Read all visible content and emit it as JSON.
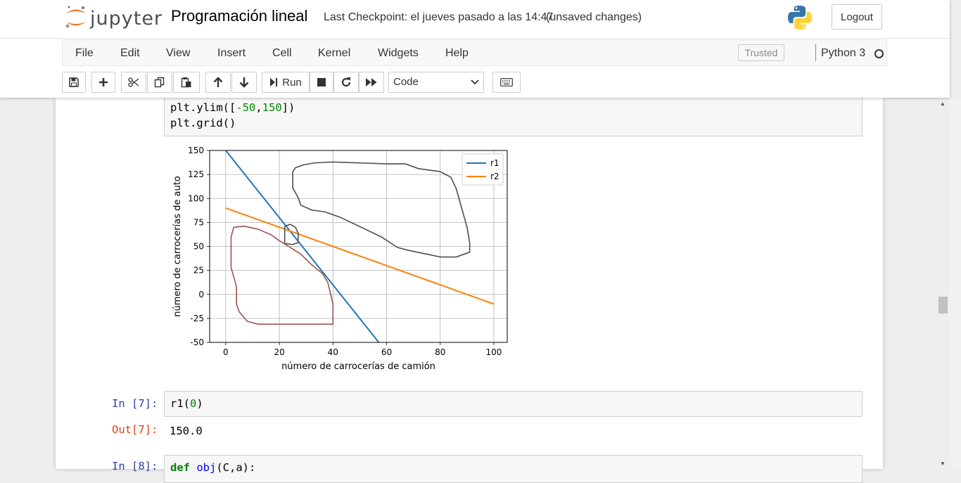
{
  "header": {
    "logo_text": "jupyter",
    "notebook_title": "Programación lineal",
    "checkpoint": "Last Checkpoint: el jueves pasado a las 14:47",
    "autosave_status": "(unsaved changes)",
    "logout_label": "Logout"
  },
  "menubar": {
    "items": [
      "File",
      "Edit",
      "View",
      "Insert",
      "Cell",
      "Kernel",
      "Widgets",
      "Help"
    ],
    "trusted_label": "Trusted",
    "kernel_name": "Python 3"
  },
  "toolbar": {
    "run_label": "Run",
    "cell_type": "Code",
    "icons": [
      "save-icon",
      "plus-icon",
      "cut-icon",
      "copy-icon",
      "paste-icon",
      "arrow-up-icon",
      "arrow-down-icon",
      "run-icon",
      "stop-icon",
      "restart-icon",
      "fast-forward-icon",
      "keyboard-icon"
    ]
  },
  "cells": {
    "cell_6_partial_lines": [
      "plt.ylim([-50,150])",
      "plt.grid()"
    ],
    "cell_7": {
      "in_prompt": "In [7]:",
      "code": "r1(0)",
      "out_prompt": "Out[7]:",
      "output": "150.0"
    },
    "cell_8": {
      "in_prompt": "In [8]:",
      "code": "def obj(C,a):"
    }
  },
  "chart_data": {
    "type": "line",
    "xlabel": "número de carrocerías de camión",
    "ylabel": "número de carrocerías de auto",
    "xlim": [
      -6,
      105
    ],
    "ylim": [
      -50,
      150
    ],
    "xticks": [
      0,
      20,
      40,
      60,
      80,
      100
    ],
    "yticks": [
      -50,
      -25,
      0,
      25,
      50,
      75,
      100,
      125,
      150
    ],
    "grid": true,
    "legend_position": "top-right",
    "series": [
      {
        "name": "r1",
        "color": "#1f77b4",
        "x": [
          0,
          57.1
        ],
        "y": [
          150,
          -50
        ]
      },
      {
        "name": "r2",
        "color": "#ff7f0e",
        "x": [
          0,
          100
        ],
        "y": [
          90,
          -10
        ]
      }
    ],
    "annotations": [
      {
        "kind": "freehand-region",
        "color": "#4d4d4d",
        "points": [
          [
            25,
            128
          ],
          [
            26,
            132
          ],
          [
            29,
            135
          ],
          [
            33,
            137
          ],
          [
            40,
            138
          ],
          [
            50,
            137
          ],
          [
            60,
            136
          ],
          [
            67,
            136
          ],
          [
            72,
            131
          ],
          [
            80,
            128
          ],
          [
            84,
            122
          ],
          [
            86,
            110
          ],
          [
            88,
            90
          ],
          [
            90,
            70
          ],
          [
            91,
            54
          ],
          [
            91,
            44
          ],
          [
            86,
            39
          ],
          [
            80,
            39
          ],
          [
            75,
            42
          ],
          [
            68,
            46
          ],
          [
            64,
            49
          ],
          [
            58,
            60
          ],
          [
            52,
            68
          ],
          [
            43,
            80
          ],
          [
            37,
            86
          ],
          [
            32,
            88
          ],
          [
            28,
            93
          ],
          [
            27,
            101
          ],
          [
            25,
            111
          ],
          [
            25,
            122
          ],
          [
            25,
            128
          ]
        ]
      },
      {
        "kind": "freehand-region",
        "color": "#4d4d4d",
        "points": [
          [
            22,
            71
          ],
          [
            24,
            73
          ],
          [
            26,
            70
          ],
          [
            27,
            64
          ],
          [
            27,
            54
          ],
          [
            25,
            52
          ],
          [
            22,
            53
          ],
          [
            22,
            60
          ],
          [
            22,
            67
          ],
          [
            22,
            71
          ]
        ]
      },
      {
        "kind": "freehand-region",
        "color": "#a0524f",
        "points": [
          [
            3,
            70
          ],
          [
            7,
            71
          ],
          [
            12,
            68
          ],
          [
            17,
            62
          ],
          [
            20,
            56
          ],
          [
            24,
            49
          ],
          [
            28,
            42
          ],
          [
            32,
            31
          ],
          [
            36,
            22
          ],
          [
            38,
            13
          ],
          [
            39,
            2
          ],
          [
            40,
            -10
          ],
          [
            40,
            -22
          ],
          [
            40,
            -31
          ],
          [
            33,
            -31
          ],
          [
            20,
            -31
          ],
          [
            12,
            -31
          ],
          [
            8,
            -28
          ],
          [
            5,
            -18
          ],
          [
            4,
            -10
          ],
          [
            4,
            8
          ],
          [
            2,
            28
          ],
          [
            2,
            46
          ],
          [
            2,
            60
          ],
          [
            3,
            70
          ]
        ]
      }
    ]
  }
}
